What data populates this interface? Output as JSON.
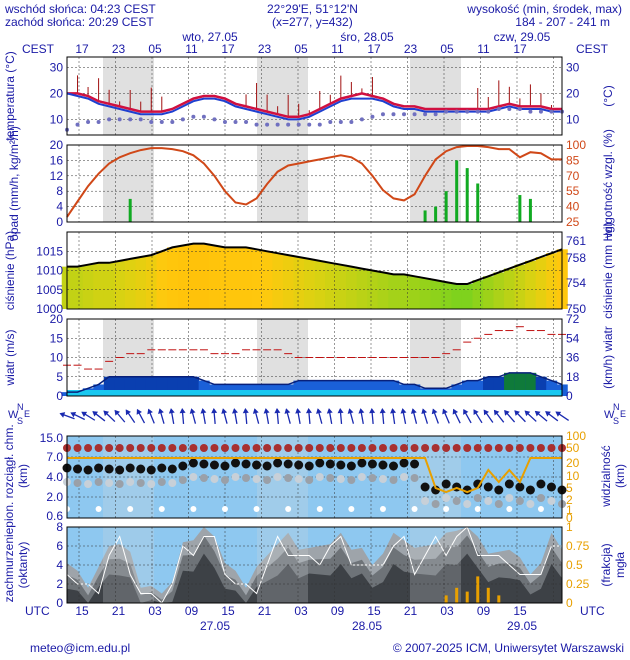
{
  "header": {
    "sunrise": "wschód słońca: 04:23 CEST",
    "sunset": "zachód słońca: 20:29 CEST",
    "coords": "22°29'E, 51°12'N",
    "grid": "(x=277, y=432)",
    "elev_label": "wysokość (min, środek, max)",
    "elev_values": "184 - 207 - 241 m"
  },
  "top_axis": {
    "tz": "CEST",
    "days": [
      "wto, 27.05",
      "śro, 28.05",
      "czw, 29.05"
    ],
    "hours": [
      "17",
      "23",
      "05",
      "11",
      "17",
      "23",
      "05",
      "11",
      "17",
      "23",
      "05",
      "11",
      "17"
    ]
  },
  "bottom_axis": {
    "tz": "UTC",
    "hours": [
      "15",
      "21",
      "03",
      "09",
      "15",
      "21",
      "03",
      "09",
      "15",
      "21",
      "03",
      "09",
      "15"
    ],
    "dates": [
      "27.05",
      "28.05",
      "29.05"
    ]
  },
  "footer": {
    "email": "meteo@icm.edu.pl",
    "copyright": "© 2007-2025 ICM, Uniwersytet Warszawski"
  },
  "colors": {
    "text": "#1a1aa6",
    "night_band": "#d8d8d8",
    "temp_line": "#d01040",
    "temp_min": "#1e3fd0",
    "rain": "#11aa22",
    "humidity": "#d04818",
    "pressure": "#000000",
    "wind": "#1a60d8",
    "gust": "#c01010",
    "cloud_sky": "#8ec8f0",
    "fog": "#e8a000"
  },
  "chart_data": [
    {
      "type": "line",
      "panel": "temperature",
      "ylabel_left": "temperatura (°C)",
      "ylabel_right": "(°C)",
      "ylim": [
        4,
        34
      ],
      "ticks": [
        10,
        20,
        30
      ],
      "series": [
        {
          "values": [
            20,
            20,
            19,
            17,
            16,
            15,
            14,
            13,
            13,
            13,
            14,
            16,
            18,
            19,
            19,
            18,
            16,
            15,
            14,
            13,
            12,
            11,
            11,
            12,
            14,
            16,
            18,
            19,
            20,
            19,
            18,
            16,
            15,
            15,
            14,
            14,
            14,
            14,
            14,
            14,
            14,
            15,
            16,
            15,
            15,
            15,
            14,
            14
          ]
        },
        {
          "values": [
            20,
            19,
            18,
            16,
            15,
            14,
            13,
            12,
            12,
            12,
            13,
            15,
            17,
            18,
            18,
            17,
            15,
            14,
            13,
            12,
            11,
            10,
            10,
            11,
            13,
            15,
            17,
            18,
            18,
            18,
            17,
            15,
            14,
            14,
            13,
            13,
            13,
            13,
            13,
            13,
            13,
            14,
            15,
            14,
            14,
            14,
            13,
            13
          ]
        },
        {
          "values": [
            6,
            8,
            9,
            9,
            10,
            10,
            10,
            10,
            9,
            9,
            9,
            10,
            11,
            11,
            10,
            9,
            9,
            9,
            8,
            8,
            8,
            8,
            8,
            8,
            8,
            9,
            9,
            9,
            10,
            11,
            12,
            12,
            12,
            12,
            12,
            12,
            13,
            13,
            13,
            13,
            13,
            14,
            14,
            14,
            13,
            13,
            13,
            13
          ]
        }
      ]
    },
    {
      "type": "bar",
      "panel": "precipitation",
      "ylabel_left": "opad (mm/h, kg/m²/h)",
      "ylabel_right": "wilgotność wzgl. (%)",
      "ylim": [
        0,
        20
      ],
      "ticks": [
        0,
        4,
        8,
        12,
        16,
        20
      ],
      "ticks_right": [
        25,
        40,
        55,
        70,
        85,
        100
      ],
      "rain": [
        0,
        0,
        0,
        0,
        0,
        0,
        6,
        0,
        0,
        0,
        0,
        0,
        0,
        0,
        0,
        0,
        0,
        0,
        0,
        0,
        0,
        0,
        0,
        0,
        0,
        0,
        0,
        0,
        0,
        0,
        0,
        0,
        0,
        0,
        3,
        4,
        8,
        16,
        14,
        10,
        0,
        0,
        0,
        7,
        6,
        0,
        0,
        0
      ],
      "humidity": [
        30,
        45,
        60,
        72,
        82,
        88,
        92,
        95,
        97,
        97,
        96,
        94,
        90,
        82,
        70,
        55,
        44,
        42,
        48,
        62,
        74,
        80,
        82,
        84,
        86,
        88,
        90,
        88,
        82,
        70,
        56,
        48,
        46,
        52,
        70,
        86,
        94,
        98,
        99,
        99,
        98,
        96,
        96,
        88,
        93,
        92,
        86,
        86
      ]
    },
    {
      "type": "line",
      "panel": "pressure",
      "ylabel_left": "ciśnienie (hPa)",
      "ylabel_right": "ciśnienie (mm Hg)",
      "ylim": [
        1000,
        1020
      ],
      "ticks": [
        1000,
        1005,
        1010,
        1015
      ],
      "ticks_right": [
        750,
        754,
        758,
        761
      ],
      "values": [
        1011,
        1011,
        1011.5,
        1012,
        1012,
        1012.5,
        1013,
        1013.5,
        1014,
        1015,
        1016,
        1016.5,
        1017,
        1017,
        1016.5,
        1016,
        1016,
        1016,
        1015.5,
        1015,
        1014.5,
        1014,
        1013.5,
        1013,
        1012.5,
        1012,
        1011.5,
        1011,
        1010.5,
        1010,
        1009.5,
        1009,
        1009,
        1008.5,
        1008,
        1007.5,
        1007,
        1006.5,
        1006.5,
        1007.5,
        1008.5,
        1009.5,
        1010.5,
        1011.5,
        1012.5,
        1013.5,
        1014.5,
        1015.5
      ]
    },
    {
      "type": "area",
      "panel": "wind",
      "ylabel_left": "wiatr (m/s)",
      "ylabel_right": "(km/h) wiatr",
      "ylim": [
        0,
        20
      ],
      "ticks": [
        0,
        5,
        10,
        15,
        20
      ],
      "ticks_right": [
        0,
        18,
        36,
        54,
        72
      ],
      "speed": [
        1,
        1,
        2,
        3,
        5,
        5,
        5,
        5,
        5,
        5,
        5,
        5,
        5,
        4,
        3,
        3,
        3,
        3,
        3,
        3,
        3,
        3,
        4,
        4,
        4,
        4,
        4,
        4,
        4,
        4,
        4,
        4,
        3,
        3,
        2,
        2,
        2,
        3,
        4,
        4,
        5,
        5,
        6,
        6,
        6,
        5,
        4,
        3
      ],
      "gust": [
        8,
        8,
        7,
        7,
        9,
        10,
        11,
        11,
        12,
        12,
        12,
        12,
        12,
        12,
        11,
        11,
        11,
        12,
        12,
        12,
        12,
        11,
        10,
        10,
        10,
        10,
        10,
        10,
        10,
        10,
        10,
        10,
        10,
        10,
        10,
        10,
        11,
        12,
        14,
        15,
        16,
        17,
        17,
        18,
        17,
        17,
        16,
        16
      ]
    },
    {
      "type": "scatter",
      "panel": "clouds",
      "ylabel_left": "pion. rozciągł. chm. (km)",
      "ylabel_right": "widzialność (km)",
      "ylim": [
        0,
        15
      ],
      "ticks": [
        0.6,
        2.0,
        4.0,
        7.0,
        15.0
      ],
      "ticks_right": [
        0,
        1,
        2,
        5,
        10,
        20,
        50,
        100
      ]
    },
    {
      "type": "area",
      "panel": "cloudiness",
      "ylabel_left": "zachmurzenie (oktanty)",
      "ylabel_right": "(frakcja) mgła",
      "ylim": [
        0,
        8
      ],
      "ticks": [
        0,
        2,
        4,
        6,
        8
      ],
      "ticks_right": [
        0,
        0.25,
        0.5,
        0.75,
        1
      ],
      "cover": [
        5,
        3,
        2,
        3,
        6,
        7,
        5,
        2,
        1,
        1,
        3,
        6,
        7,
        8,
        7,
        5,
        3,
        2,
        3,
        5,
        7,
        7,
        6,
        5,
        6,
        7,
        7,
        6,
        5,
        4,
        6,
        7,
        7,
        5,
        6,
        7,
        7,
        8,
        8,
        7,
        6,
        5,
        6,
        4,
        3,
        5,
        7,
        6
      ],
      "fog": [
        0,
        0,
        0,
        0,
        0,
        0,
        0,
        0,
        0,
        0,
        0,
        0,
        0,
        0,
        0,
        0,
        0,
        0,
        0,
        0,
        0,
        0,
        0,
        0,
        0,
        0,
        0,
        0,
        0,
        0,
        0,
        0,
        0,
        0,
        0,
        0,
        0.1,
        0.2,
        0.15,
        0.35,
        0.2,
        0.1,
        0,
        0,
        0,
        0,
        0,
        0
      ]
    }
  ]
}
